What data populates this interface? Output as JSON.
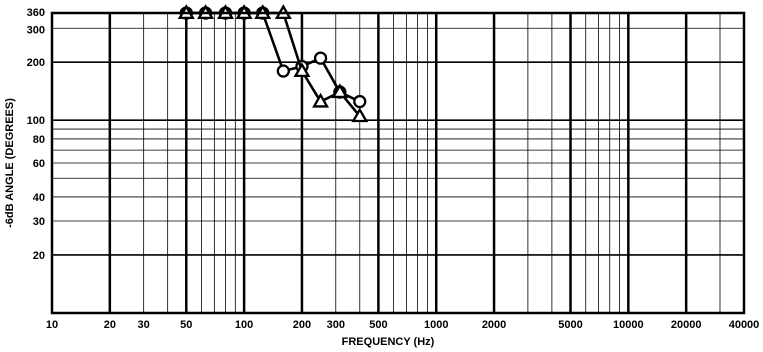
{
  "chart_data": {
    "type": "line",
    "xlabel": "FREQUENCY (Hz)",
    "ylabel": "-6dB ANGLE (DEGREES)",
    "x_scale": "log",
    "y_scale": "log",
    "xlim": [
      10,
      40000
    ],
    "ylim": [
      10,
      360
    ],
    "x_ticks": [
      10,
      20,
      30,
      50,
      100,
      200,
      300,
      500,
      1000,
      2000,
      5000,
      10000,
      20000,
      40000
    ],
    "x_tick_labels": [
      "10",
      "20",
      "30",
      "50",
      "100",
      "200",
      "300",
      "500",
      "1000",
      "2000",
      "5000",
      "10000",
      "20000",
      "40000"
    ],
    "y_ticks": [
      20,
      30,
      40,
      60,
      80,
      100,
      200,
      300,
      360
    ],
    "y_tick_labels": [
      "20",
      "30",
      "40",
      "60",
      "80",
      "100",
      "200",
      "300",
      "360"
    ],
    "grid": true,
    "series": [
      {
        "marker": "circle",
        "x": [
          50,
          63,
          80,
          100,
          125,
          160,
          200,
          250,
          315,
          400
        ],
        "y": [
          360,
          360,
          360,
          360,
          360,
          180,
          190,
          210,
          140,
          125
        ]
      },
      {
        "marker": "triangle",
        "x": [
          50,
          63,
          80,
          100,
          125,
          160,
          200,
          250,
          315,
          400
        ],
        "y": [
          360,
          360,
          360,
          360,
          360,
          360,
          180,
          125,
          140,
          105
        ]
      }
    ]
  }
}
